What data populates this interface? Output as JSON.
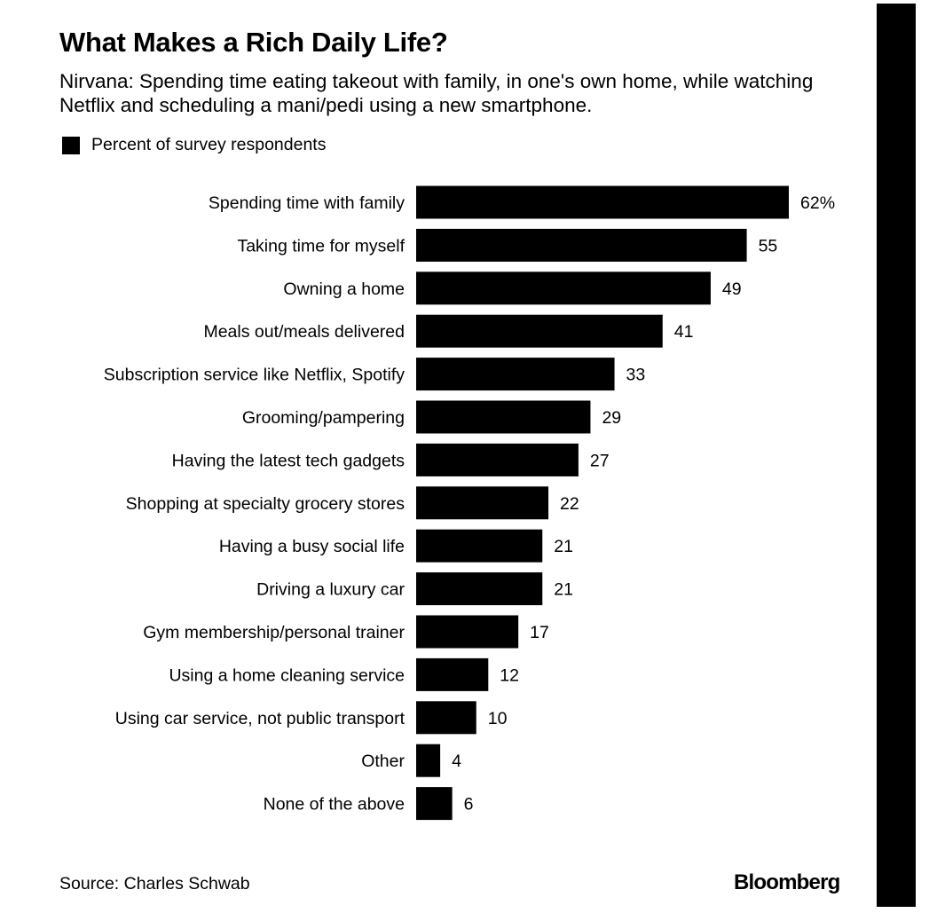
{
  "header": {
    "title": "What Makes a Rich Daily Life?",
    "subtitle": "Nirvana: Spending time eating takeout with family, in one's own home, while watching Netflix and scheduling a mani/pedi using a new smartphone."
  },
  "legend": {
    "label": "Percent of survey respondents"
  },
  "footer": {
    "source": "Source: Charles Schwab",
    "brand": "Bloomberg"
  },
  "colors": {
    "bar": "#000000",
    "background": "#ffffff"
  },
  "chart_data": {
    "type": "bar",
    "orientation": "horizontal",
    "title": "What Makes a Rich Daily Life?",
    "series": [
      {
        "name": "Percent of survey respondents",
        "values": [
          62,
          55,
          49,
          41,
          33,
          29,
          27,
          22,
          21,
          21,
          17,
          12,
          10,
          4,
          6
        ]
      }
    ],
    "categories": [
      "Spending time with family",
      "Taking time for myself",
      "Owning a home",
      "Meals out/meals delivered",
      "Subscription service like Netflix, Spotify",
      "Grooming/pampering",
      "Having the latest tech gadgets",
      "Shopping at specialty grocery stores",
      "Having a busy social life",
      "Driving a luxury car",
      "Gym membership/personal trainer",
      "Using a home cleaning service",
      "Using car service, not public transport",
      "Other",
      "None of the above"
    ],
    "value_labels": [
      "62%",
      "55",
      "49",
      "41",
      "33",
      "29",
      "27",
      "22",
      "21",
      "21",
      "17",
      "12",
      "10",
      "4",
      "6"
    ],
    "grid": false,
    "legend_position": "top-left"
  }
}
